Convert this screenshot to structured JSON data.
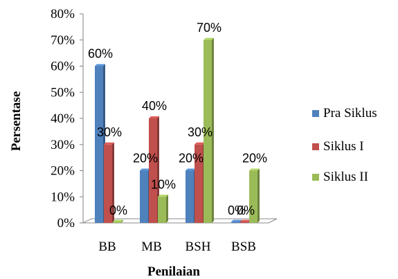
{
  "chart_data": {
    "type": "bar",
    "title": "",
    "xlabel": "Penilaian",
    "ylabel": "Persentase",
    "categories": [
      "BB",
      "MB",
      "BSH",
      "BSB"
    ],
    "ylim": [
      0,
      80
    ],
    "yticks": [
      "0%",
      "10%",
      "20%",
      "30%",
      "40%",
      "50%",
      "60%",
      "70%",
      "80%"
    ],
    "grid": false,
    "legend_position": "right",
    "series": [
      {
        "name": "Pra Siklus",
        "color": "#4F81BD",
        "values": [
          60,
          20,
          20,
          0
        ],
        "labels": [
          "60%",
          "20%",
          "20%",
          "0%"
        ]
      },
      {
        "name": "Siklus I",
        "color": "#C0504D",
        "values": [
          30,
          40,
          30,
          0
        ],
        "labels": [
          "30%",
          "40%",
          "30%",
          "0%"
        ]
      },
      {
        "name": "Siklus II",
        "color": "#9BBB59",
        "values": [
          0,
          10,
          70,
          20
        ],
        "labels": [
          "0%",
          "10%",
          "70%",
          "20%"
        ]
      }
    ]
  }
}
